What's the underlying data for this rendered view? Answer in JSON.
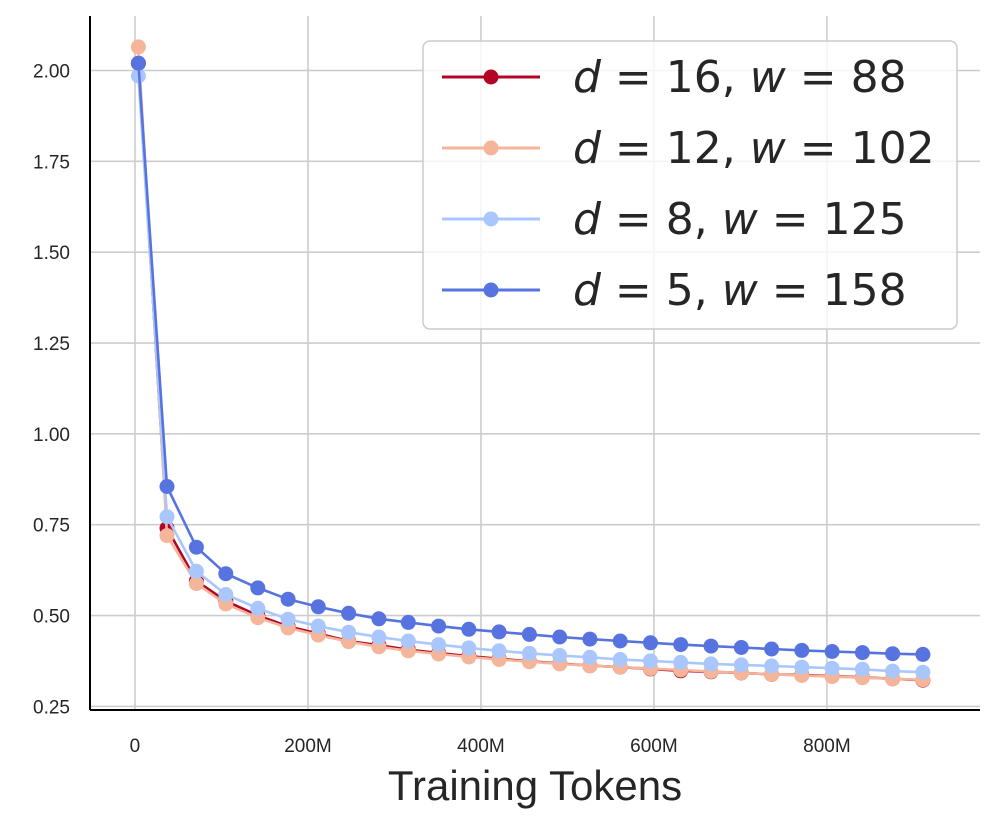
{
  "chart_data": {
    "type": "line",
    "title": "",
    "xlabel": "Training Tokens",
    "ylabel": "",
    "xlim": [
      -52000000,
      977000000
    ],
    "ylim": [
      0.24,
      2.15
    ],
    "x_ticks": [
      0,
      200000000,
      400000000,
      600000000,
      800000000
    ],
    "x_tick_labels": [
      "0",
      "200M",
      "400M",
      "600M",
      "800M"
    ],
    "y_ticks": [
      0.25,
      0.5,
      0.75,
      1.0,
      1.25,
      1.5,
      1.75,
      2.0
    ],
    "y_tick_labels": [
      "0.25",
      "0.50",
      "0.75",
      "1.00",
      "1.25",
      "1.50",
      "1.75",
      "2.00"
    ],
    "grid": true,
    "legend_position": "top-right",
    "x": [
      4000000,
      37000000,
      71000000,
      105000000,
      142000000,
      177000000,
      212000000,
      247000000,
      282000000,
      316000000,
      351000000,
      386000000,
      421000000,
      456000000,
      491000000,
      526000000,
      561000000,
      596000000,
      631000000,
      666000000,
      701000000,
      736000000,
      771000000,
      806000000,
      841000000,
      876000000,
      911000000
    ],
    "series": [
      {
        "name": "d = 16, w = 88",
        "legend": {
          "d": "16",
          "w": "88"
        },
        "color": "#b40426",
        "values": [
          2.02,
          0.74,
          0.595,
          0.54,
          0.5,
          0.47,
          0.45,
          0.43,
          0.418,
          0.406,
          0.397,
          0.388,
          0.381,
          0.374,
          0.368,
          0.362,
          0.358,
          0.353,
          0.348,
          0.345,
          0.342,
          0.338,
          0.336,
          0.333,
          0.33,
          0.326,
          0.322
        ]
      },
      {
        "name": "d = 12, w = 102",
        "legend": {
          "d": "12",
          "w": "102"
        },
        "color": "#f4b59b",
        "values": [
          2.065,
          0.72,
          0.588,
          0.532,
          0.494,
          0.466,
          0.446,
          0.428,
          0.414,
          0.403,
          0.394,
          0.386,
          0.379,
          0.373,
          0.367,
          0.362,
          0.358,
          0.354,
          0.35,
          0.346,
          0.342,
          0.338,
          0.335,
          0.332,
          0.329,
          0.326,
          0.323
        ]
      },
      {
        "name": "d = 8, w = 125",
        "legend": {
          "d": "8",
          "w": "125"
        },
        "color": "#aac7fd",
        "values": [
          1.985,
          0.772,
          0.622,
          0.558,
          0.52,
          0.49,
          0.471,
          0.454,
          0.441,
          0.43,
          0.42,
          0.411,
          0.403,
          0.396,
          0.39,
          0.385,
          0.379,
          0.375,
          0.371,
          0.367,
          0.364,
          0.361,
          0.358,
          0.355,
          0.352,
          0.347,
          0.344
        ]
      },
      {
        "name": "d = 5, w = 158",
        "legend": {
          "d": "5",
          "w": "158"
        },
        "color": "#5673e0",
        "values": [
          2.02,
          0.855,
          0.688,
          0.615,
          0.576,
          0.545,
          0.524,
          0.506,
          0.491,
          0.481,
          0.471,
          0.462,
          0.455,
          0.448,
          0.441,
          0.435,
          0.43,
          0.425,
          0.42,
          0.416,
          0.412,
          0.408,
          0.404,
          0.401,
          0.398,
          0.395,
          0.393
        ]
      }
    ]
  }
}
